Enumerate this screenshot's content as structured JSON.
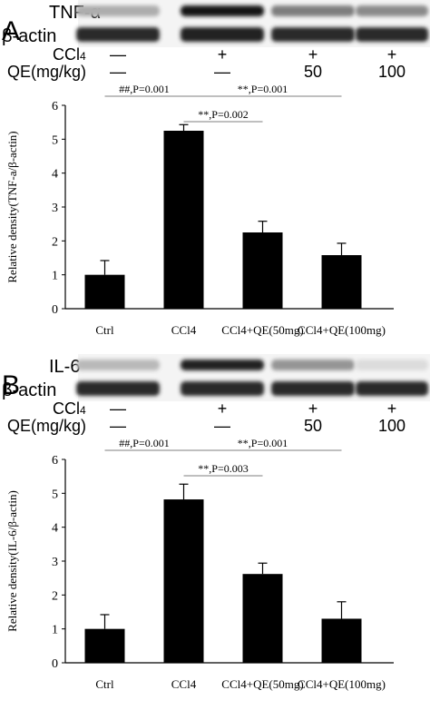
{
  "panels": [
    {
      "letter": "A",
      "blot_rows": [
        "TNF-α",
        "β-actin"
      ],
      "treat_rows": [
        {
          "label_main": "CCl",
          "label_sub": "4",
          "values": [
            "—",
            "+",
            "+",
            "+"
          ]
        },
        {
          "label_main": "QE(mg/kg)",
          "label_sub": "",
          "values": [
            "—",
            "—",
            "50",
            "100"
          ]
        }
      ],
      "blot_intensity": [
        [
          0.35,
          1.0,
          0.55,
          0.5
        ],
        [
          0.9,
          0.95,
          0.9,
          0.9
        ]
      ]
    },
    {
      "letter": "B",
      "blot_rows": [
        "IL-6",
        "β-actin"
      ],
      "treat_rows": [
        {
          "label_main": "CCl",
          "label_sub": "4",
          "values": [
            "—",
            "+",
            "+",
            "+"
          ]
        },
        {
          "label_main": "QE(mg/kg)",
          "label_sub": "",
          "values": [
            "—",
            "—",
            "50",
            "100"
          ]
        }
      ],
      "blot_intensity": [
        [
          0.3,
          0.95,
          0.45,
          0.15
        ],
        [
          0.9,
          0.9,
          0.9,
          0.9
        ]
      ]
    }
  ],
  "chart_data": [
    {
      "type": "bar",
      "categories": [
        "Ctrl",
        "CCl4",
        "CCl4+QE(50mg)",
        "CCl4+QE(100mg)"
      ],
      "values": [
        1.0,
        5.25,
        2.25,
        1.58
      ],
      "errors": [
        0.42,
        0.18,
        0.33,
        0.35
      ],
      "ylabel": "Relative density(TNF-a/β-actin)",
      "ylim": [
        0,
        6
      ],
      "yticks": [
        0,
        1,
        2,
        3,
        4,
        5,
        6
      ],
      "bar_color": "#000000",
      "annotations": [
        {
          "text": "##,P=0.001",
          "from": 0,
          "to": 1,
          "level": 0
        },
        {
          "text": "**,P=0.001",
          "from": 1,
          "to": 3,
          "level": 0
        },
        {
          "text": "**,P=0.002",
          "from": 1,
          "to": 2,
          "level": 1
        }
      ]
    },
    {
      "type": "bar",
      "categories": [
        "Ctrl",
        "CCl4",
        "CCl4+QE(50mg)",
        "CCl4+QE(100mg)"
      ],
      "values": [
        1.0,
        4.82,
        2.62,
        1.3
      ],
      "errors": [
        0.42,
        0.45,
        0.32,
        0.5
      ],
      "ylabel": "Relative density(IL-6/β-actin)",
      "ylim": [
        0,
        6
      ],
      "yticks": [
        0,
        1,
        2,
        3,
        4,
        5,
        6
      ],
      "bar_color": "#000000",
      "annotations": [
        {
          "text": "##,P=0.001",
          "from": 0,
          "to": 1,
          "level": 0
        },
        {
          "text": "**,P=0.001",
          "from": 1,
          "to": 3,
          "level": 0
        },
        {
          "text": "**,P=0.003",
          "from": 1,
          "to": 2,
          "level": 1
        }
      ]
    }
  ]
}
